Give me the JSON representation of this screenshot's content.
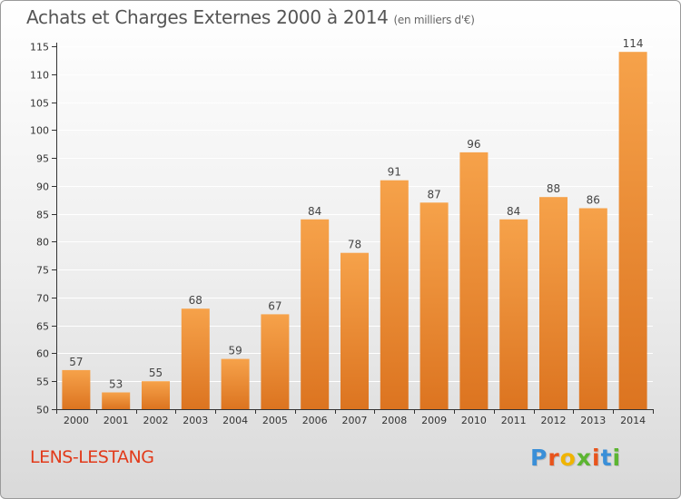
{
  "header": {
    "title": "Achats et Charges Externes 2000 à 2014",
    "subtitle": "(en milliers d'€)"
  },
  "footer": {
    "commune": "LENS-LESTANG",
    "brand": "Proxiti"
  },
  "colors": {
    "bar_top": "#f6a24a",
    "bar_bottom": "#dc7420",
    "commune_text": "#e23a1a",
    "axis": "#333333",
    "grid": "#ffffff",
    "logo": [
      "#3a8fd8",
      "#e8541c",
      "#f0b400",
      "#5cb531",
      "#e8541c",
      "#3a8fd8",
      "#5cb531"
    ]
  },
  "chart_data": {
    "type": "bar",
    "title": "Achats et Charges Externes 2000 à 2014",
    "categories": [
      "2000",
      "2001",
      "2002",
      "2003",
      "2004",
      "2005",
      "2006",
      "2007",
      "2008",
      "2009",
      "2010",
      "2011",
      "2012",
      "2013",
      "2014"
    ],
    "values": [
      57,
      53,
      55,
      68,
      59,
      67,
      84,
      78,
      91,
      87,
      96,
      84,
      88,
      86,
      114
    ],
    "ylim": [
      50,
      115
    ],
    "yticks": [
      "50",
      "55",
      "60",
      "65",
      "70",
      "75",
      "80",
      "85",
      "90",
      "95",
      "100",
      "105",
      "110",
      "115"
    ],
    "grid": true,
    "data_labels": true
  }
}
